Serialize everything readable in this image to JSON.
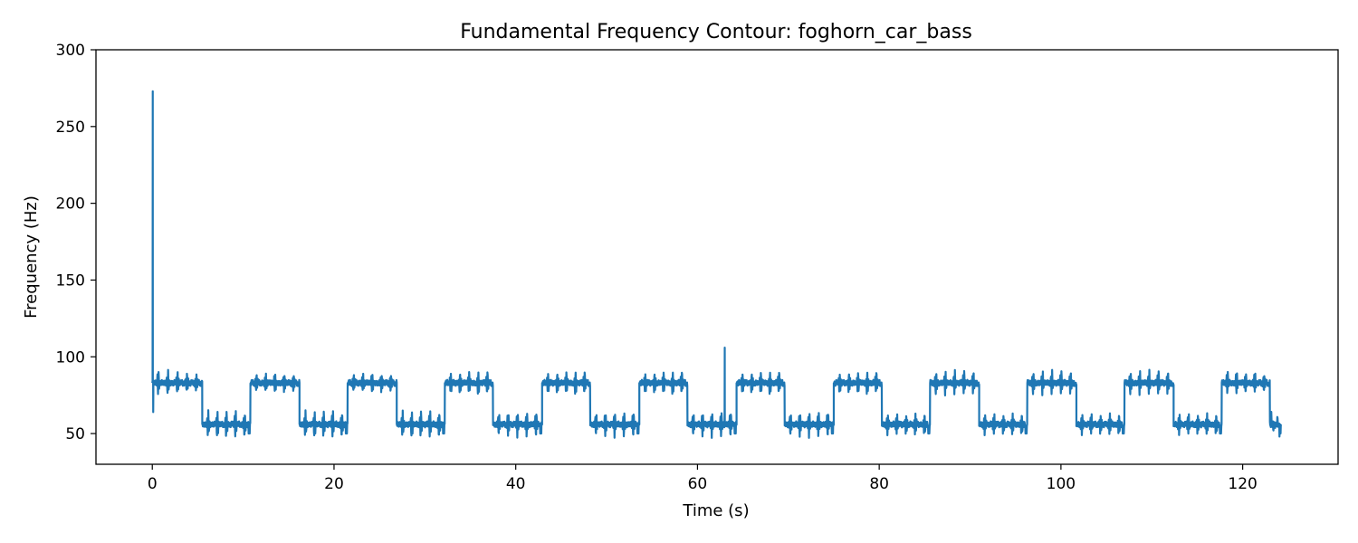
{
  "chart_data": {
    "type": "line",
    "title": "Fundamental Frequency Contour: foghorn_car_bass",
    "xlabel": "Time (s)",
    "ylabel": "Frequency (Hz)",
    "xlim": [
      -6.2,
      130.5
    ],
    "ylim": [
      30,
      300
    ],
    "xticks": [
      0,
      20,
      40,
      60,
      80,
      100,
      120
    ],
    "yticks": [
      50,
      100,
      150,
      200,
      250,
      300
    ],
    "grid": false,
    "line_color": "#1f77b4",
    "levels": {
      "high_hz": 83,
      "low_hz": 56
    },
    "segments": [
      {
        "start": 0.0,
        "end": 5.5,
        "level": "high"
      },
      {
        "start": 5.5,
        "end": 10.8,
        "level": "low"
      },
      {
        "start": 10.8,
        "end": 16.2,
        "level": "high"
      },
      {
        "start": 16.2,
        "end": 21.5,
        "level": "low"
      },
      {
        "start": 21.5,
        "end": 26.9,
        "level": "high"
      },
      {
        "start": 26.9,
        "end": 32.2,
        "level": "low"
      },
      {
        "start": 32.2,
        "end": 37.5,
        "level": "high"
      },
      {
        "start": 37.5,
        "end": 42.9,
        "level": "low"
      },
      {
        "start": 42.9,
        "end": 48.2,
        "level": "high"
      },
      {
        "start": 48.2,
        "end": 53.6,
        "level": "low"
      },
      {
        "start": 53.6,
        "end": 58.9,
        "level": "high"
      },
      {
        "start": 58.9,
        "end": 64.3,
        "level": "low"
      },
      {
        "start": 64.3,
        "end": 69.6,
        "level": "high"
      },
      {
        "start": 69.6,
        "end": 75.0,
        "level": "low"
      },
      {
        "start": 75.0,
        "end": 80.3,
        "level": "high"
      },
      {
        "start": 80.3,
        "end": 85.6,
        "level": "low"
      },
      {
        "start": 85.6,
        "end": 91.0,
        "level": "high"
      },
      {
        "start": 91.0,
        "end": 96.3,
        "level": "low"
      },
      {
        "start": 96.3,
        "end": 101.7,
        "level": "high"
      },
      {
        "start": 101.7,
        "end": 107.0,
        "level": "low"
      },
      {
        "start": 107.0,
        "end": 112.4,
        "level": "high"
      },
      {
        "start": 112.4,
        "end": 117.7,
        "level": "low"
      },
      {
        "start": 117.7,
        "end": 123.0,
        "level": "high"
      },
      {
        "start": 123.0,
        "end": 124.2,
        "level": "low"
      }
    ],
    "spikes": [
      {
        "x": 0.05,
        "y": 273
      },
      {
        "x": 0.1,
        "y": 64
      },
      {
        "x": 63.0,
        "y": 106
      }
    ],
    "vibrato": {
      "oscillations_per_segment": 5,
      "high_peak": 91,
      "high_dip": 77,
      "low_peak": 65,
      "low_dip": 46
    }
  }
}
